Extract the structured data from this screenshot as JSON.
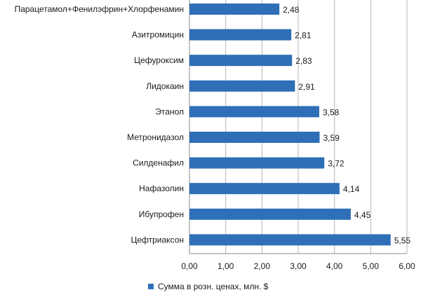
{
  "chart_data": {
    "type": "bar",
    "orientation": "horizontal",
    "categories": [
      "Парацетамол+Фенилэфрин+Хлорфенамин",
      "Азитромицин",
      "Цефуроксим",
      "Лидокаин",
      "Этанол",
      "Метронидазол",
      "Силденафил",
      "Нафазолин",
      "Ибупрофен",
      "Цефтриаксон"
    ],
    "values": [
      2.48,
      2.81,
      2.83,
      2.91,
      3.58,
      3.59,
      3.72,
      4.14,
      4.45,
      5.55
    ],
    "value_labels": [
      "2,48",
      "2,81",
      "2,83",
      "2,91",
      "3,58",
      "3,59",
      "3,72",
      "4,14",
      "4,45",
      "5,55"
    ],
    "x_ticks": [
      "0,00",
      "1,00",
      "2,00",
      "3,00",
      "4,00",
      "5,00",
      "6,00"
    ],
    "xlim": [
      0,
      6
    ],
    "series": [
      {
        "name": "Сумма в розн. ценах, млн. $",
        "values": [
          2.48,
          2.81,
          2.83,
          2.91,
          3.58,
          3.59,
          3.72,
          4.14,
          4.45,
          5.55
        ]
      }
    ],
    "legend": {
      "label": "Сумма в розн. ценах, млн. $",
      "position": "bottom"
    },
    "grid": true,
    "colors": {
      "bar": "#2f6fb7",
      "grid": "#b5b5b5",
      "axis": "#8c8c8c"
    }
  }
}
